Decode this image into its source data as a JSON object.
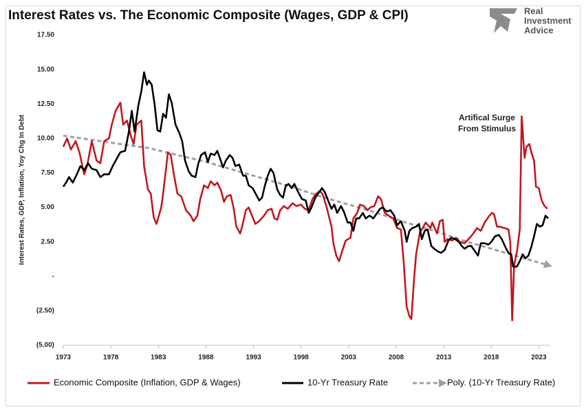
{
  "chart_data": {
    "type": "line",
    "title": "Interest Rates vs. The Economic Composite (Wages, GDP & CPI)",
    "y_label": "Interest Rates, GDP, Inflation, Yoy Chg In Debt",
    "annotation": [
      "Artifical Surge",
      "From Stimulus"
    ],
    "xlim": [
      1973,
      2024.2
    ],
    "xticks": [
      1973,
      1978,
      1983,
      1988,
      1993,
      1998,
      2003,
      2008,
      2013,
      2018,
      2023
    ],
    "ylim": [
      -5,
      17.5
    ],
    "yticks": [
      {
        "value": -5,
        "label": "(5.00)"
      },
      {
        "value": -2.5,
        "label": "(2.50)"
      },
      {
        "value": 0,
        "label": "-"
      },
      {
        "value": 2.5,
        "label": "2.50"
      },
      {
        "value": 5,
        "label": "5.00"
      },
      {
        "value": 7.5,
        "label": "7.50"
      },
      {
        "value": 10,
        "label": "10.00"
      },
      {
        "value": 12.5,
        "label": "12.50"
      },
      {
        "value": 15,
        "label": "15.00"
      },
      {
        "value": 17.5,
        "label": "17.50"
      }
    ],
    "grid": false,
    "legend": "bottom",
    "series": [
      {
        "name": "Economic Composite (Inflation, GDP & Wages)",
        "color": "#c0181f",
        "style": "solid",
        "x": [
          1973.0,
          1973.4,
          1973.8,
          1974.3,
          1974.7,
          1975.2,
          1975.5,
          1976.0,
          1976.5,
          1976.9,
          1977.3,
          1977.8,
          1978.1,
          1978.5,
          1979.0,
          1979.3,
          1979.7,
          1980.1,
          1980.4,
          1980.7,
          1981.2,
          1981.5,
          1981.9,
          1982.2,
          1982.5,
          1982.8,
          1983.3,
          1983.5,
          1984.0,
          1984.3,
          1984.6,
          1985.0,
          1985.4,
          1985.9,
          1986.4,
          1986.7,
          1987.1,
          1987.4,
          1987.8,
          1988.2,
          1988.5,
          1988.9,
          1989.2,
          1989.6,
          1989.9,
          1990.2,
          1990.6,
          1990.9,
          1991.2,
          1991.6,
          1991.8,
          1992.2,
          1992.5,
          1992.9,
          1993.2,
          1993.6,
          1994.1,
          1994.5,
          1994.9,
          1995.2,
          1995.5,
          1995.8,
          1996.2,
          1996.6,
          1997.1,
          1997.5,
          1998.0,
          1998.4,
          1998.8,
          1999.2,
          1999.6,
          2000.0,
          2000.3,
          2000.7,
          2001.2,
          2001.4,
          2001.7,
          2002.0,
          2002.3,
          2002.7,
          2003.2,
          2003.5,
          2003.9,
          2004.2,
          2004.6,
          2005.0,
          2005.3,
          2005.7,
          2006.1,
          2006.4,
          2006.8,
          2007.2,
          2007.7,
          2008.1,
          2008.5,
          2008.8,
          2009.1,
          2009.4,
          2009.6,
          2009.9,
          2010.1,
          2010.5,
          2010.8,
          2011.1,
          2011.6,
          2011.8,
          2012.3,
          2012.6,
          2012.9,
          2013.1,
          2013.4,
          2013.9,
          2014.3,
          2014.7,
          2015.2,
          2015.6,
          2016.0,
          2016.5,
          2016.9,
          2017.3,
          2017.8,
          2018.1,
          2018.3,
          2018.6,
          2018.9,
          2019.4,
          2019.8,
          2020.0,
          2020.2,
          2020.4,
          2020.7,
          2021.0,
          2021.2,
          2021.5,
          2021.7,
          2022.0,
          2022.3,
          2022.5,
          2022.7,
          2023.0,
          2023.3,
          2023.6,
          2023.9
        ],
        "values": [
          9.4,
          10.0,
          9.2,
          9.8,
          9.0,
          7.4,
          8.0,
          9.8,
          8.4,
          8.2,
          9.8,
          10.0,
          11.0,
          12.0,
          12.6,
          11.0,
          11.3,
          10.2,
          9.6,
          11.0,
          11.3,
          8.0,
          6.3,
          6.0,
          4.3,
          3.8,
          5.0,
          6.0,
          9.0,
          8.8,
          7.5,
          6.0,
          5.8,
          4.8,
          4.4,
          4.0,
          4.4,
          5.6,
          6.6,
          6.4,
          6.9,
          6.6,
          6.8,
          6.2,
          5.4,
          5.8,
          5.9,
          5.0,
          3.6,
          3.1,
          3.6,
          4.8,
          5.0,
          4.3,
          3.8,
          4.0,
          4.4,
          4.8,
          4.9,
          4.2,
          4.1,
          4.8,
          5.1,
          4.9,
          5.3,
          5.1,
          5.2,
          4.9,
          4.8,
          5.6,
          6.0,
          6.2,
          5.9,
          5.0,
          3.6,
          2.4,
          1.5,
          1.1,
          1.8,
          2.6,
          2.8,
          4.2,
          4.6,
          5.2,
          5.1,
          4.8,
          5.0,
          5.1,
          5.8,
          5.6,
          4.6,
          4.4,
          4.2,
          3.5,
          3.4,
          1.0,
          -2.2,
          -2.9,
          -3.1,
          0.0,
          1.6,
          3.2,
          3.5,
          3.9,
          3.5,
          3.9,
          3.1,
          4.0,
          4.1,
          2.5,
          2.7,
          2.6,
          2.8,
          2.5,
          2.4,
          2.7,
          3.0,
          3.5,
          3.3,
          3.9,
          4.4,
          4.6,
          4.5,
          3.6,
          3.6,
          3.5,
          3.4,
          2.5,
          -3.2,
          0.8,
          1.8,
          3.4,
          11.6,
          8.6,
          9.4,
          9.6,
          8.8,
          8.4,
          6.5,
          6.4,
          5.5,
          5.1,
          4.9
        ]
      },
      {
        "name": "10-Yr Treasury Rate",
        "color": "#000000",
        "style": "solid",
        "x": [
          1973.0,
          1973.3,
          1973.6,
          1974.0,
          1974.5,
          1974.8,
          1975.2,
          1975.6,
          1976.0,
          1976.5,
          1976.9,
          1977.3,
          1977.8,
          1978.2,
          1978.6,
          1979.0,
          1979.5,
          1979.9,
          1980.2,
          1980.5,
          1980.9,
          1981.2,
          1981.5,
          1981.8,
          1982.0,
          1982.3,
          1982.6,
          1982.9,
          1983.2,
          1983.5,
          1983.8,
          1984.1,
          1984.4,
          1984.8,
          1985.2,
          1985.5,
          1985.8,
          1986.2,
          1986.5,
          1986.9,
          1987.2,
          1987.5,
          1987.9,
          1988.2,
          1988.5,
          1988.9,
          1989.2,
          1989.5,
          1989.8,
          1990.1,
          1990.5,
          1990.8,
          1991.1,
          1991.5,
          1991.9,
          1992.2,
          1992.5,
          1992.9,
          1993.3,
          1993.6,
          1993.9,
          1994.2,
          1994.5,
          1994.8,
          1995.1,
          1995.5,
          1995.8,
          1996.1,
          1996.4,
          1996.7,
          1997.0,
          1997.3,
          1997.7,
          1998.1,
          1998.5,
          1998.8,
          1999.1,
          1999.5,
          1999.9,
          2000.2,
          2000.5,
          2000.9,
          2001.2,
          2001.5,
          2001.8,
          2002.2,
          2002.5,
          2002.9,
          2003.2,
          2003.5,
          2003.8,
          2004.1,
          2004.5,
          2004.8,
          2005.2,
          2005.6,
          2005.9,
          2006.3,
          2006.6,
          2007.0,
          2007.4,
          2007.8,
          2008.1,
          2008.5,
          2008.9,
          2009.1,
          2009.4,
          2009.7,
          2010.1,
          2010.4,
          2010.7,
          2011.0,
          2011.3,
          2011.7,
          2012.0,
          2012.4,
          2012.7,
          2013.1,
          2013.5,
          2013.8,
          2014.2,
          2014.6,
          2014.9,
          2015.2,
          2015.6,
          2015.9,
          2016.3,
          2016.6,
          2016.9,
          2017.3,
          2017.7,
          2018.0,
          2018.4,
          2018.8,
          2019.1,
          2019.5,
          2019.8,
          2020.1,
          2020.3,
          2020.7,
          2021.0,
          2021.3,
          2021.6,
          2021.9,
          2022.2,
          2022.5,
          2022.8,
          2023.1,
          2023.4,
          2023.7,
          2024.0
        ],
        "values": [
          6.5,
          6.8,
          7.2,
          6.8,
          7.5,
          8.0,
          7.7,
          8.2,
          7.8,
          7.7,
          7.2,
          7.4,
          7.4,
          8.0,
          8.5,
          9.0,
          9.1,
          10.5,
          12.0,
          10.5,
          12.4,
          13.4,
          14.8,
          13.9,
          14.2,
          13.9,
          12.5,
          10.6,
          10.5,
          11.8,
          11.5,
          13.2,
          12.6,
          11.0,
          10.4,
          9.8,
          8.4,
          7.6,
          7.3,
          7.2,
          8.2,
          8.8,
          9.0,
          8.3,
          8.9,
          8.8,
          9.1,
          8.5,
          7.9,
          8.4,
          8.8,
          8.6,
          8.0,
          8.1,
          7.3,
          7.3,
          6.6,
          6.4,
          5.9,
          5.5,
          5.7,
          6.6,
          7.3,
          7.8,
          7.5,
          6.3,
          5.9,
          5.7,
          6.6,
          6.7,
          6.4,
          6.7,
          6.1,
          5.6,
          5.5,
          4.6,
          5.0,
          5.7,
          6.1,
          6.4,
          6.1,
          5.4,
          4.9,
          5.2,
          4.6,
          5.1,
          4.7,
          3.9,
          3.9,
          3.3,
          4.2,
          4.2,
          4.6,
          4.2,
          4.4,
          4.2,
          4.5,
          4.9,
          5.0,
          4.7,
          4.8,
          4.4,
          3.7,
          4.0,
          3.3,
          2.5,
          3.3,
          3.5,
          3.6,
          3.8,
          2.7,
          3.3,
          3.4,
          2.2,
          2.0,
          1.8,
          1.7,
          1.9,
          2.6,
          2.8,
          2.7,
          2.5,
          2.2,
          2.0,
          2.2,
          2.2,
          1.8,
          1.5,
          2.4,
          2.4,
          2.3,
          2.5,
          2.9,
          3.0,
          2.7,
          2.1,
          1.7,
          1.6,
          0.7,
          0.7,
          1.1,
          1.6,
          1.3,
          1.5,
          2.1,
          2.9,
          3.8,
          3.6,
          3.7,
          4.4,
          4.2
        ]
      },
      {
        "name": "Poly. (10-Yr Treasury Rate)",
        "color": "#a0a0a0",
        "style": "dashed",
        "arrow_end": true,
        "x": [
          1973,
          1976,
          1979,
          1982,
          1985,
          1988,
          1991,
          1994,
          1997,
          2000,
          2003,
          2006,
          2009,
          2012,
          2015,
          2018,
          2021,
          2024
        ],
        "values": [
          10.2,
          9.9,
          9.6,
          9.3,
          8.8,
          8.3,
          7.7,
          7.1,
          6.5,
          5.8,
          5.2,
          4.6,
          3.9,
          3.3,
          2.6,
          2.0,
          1.4,
          0.8
        ]
      }
    ]
  },
  "logo": [
    "Real",
    "Investment",
    "Advice"
  ]
}
